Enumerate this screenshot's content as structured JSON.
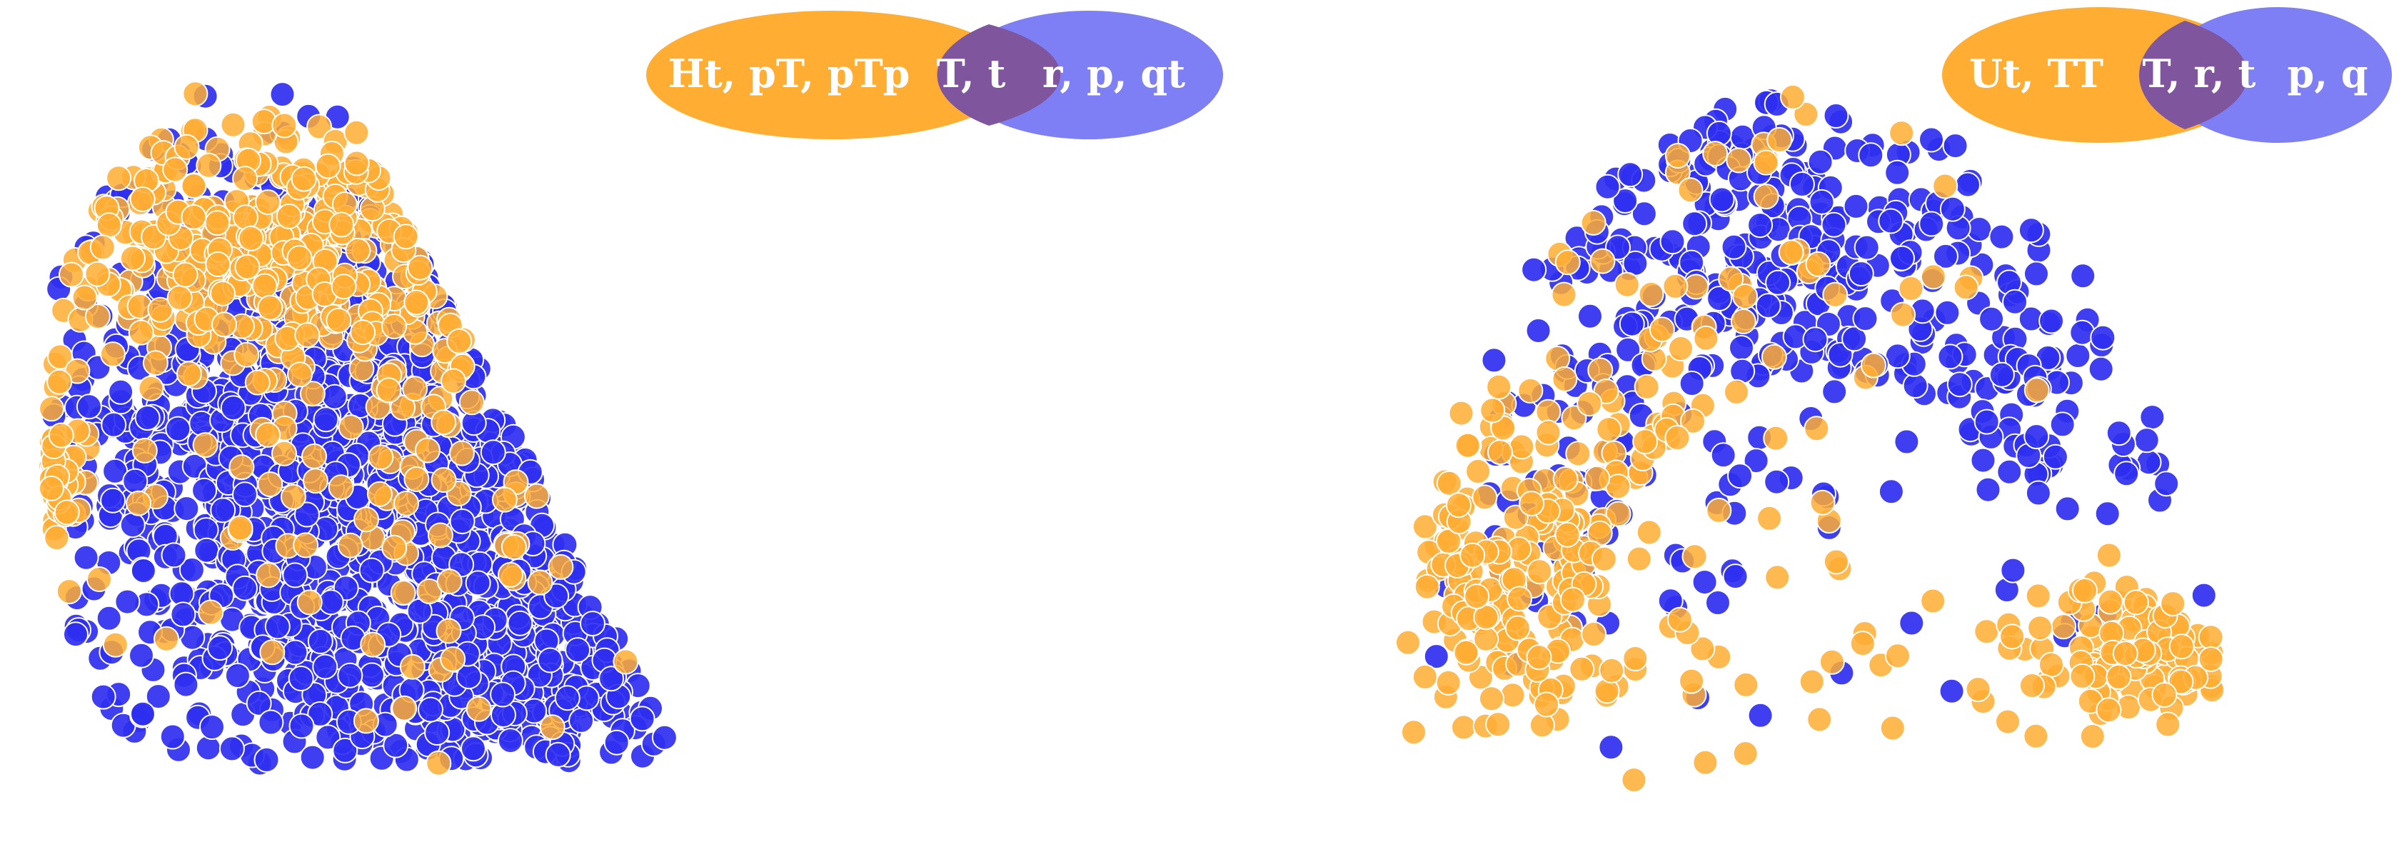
{
  "colors": {
    "blue": "#2f2ff0",
    "orange": "#ffad33",
    "point_edge": "#ffffff",
    "venn_left": "#ffad33",
    "venn_right": "#7f7ff5",
    "venn_overlap": "#7f559e"
  },
  "chart_data": [
    {
      "type": "scatter",
      "title": "",
      "xlabel": "",
      "ylabel": "",
      "axes_visible": false,
      "grid": false,
      "legend": {
        "placement": "top-right",
        "style": "venn",
        "left": "Ht, pT, pTp",
        "overlap": "T, t",
        "right": "r, p, qt"
      },
      "series": [
        {
          "color": "blue",
          "description": "dense blue cloud, leaf/wedge shape",
          "n": 1500,
          "regions": [
            [
              0.55,
              0.62,
              0.26,
              0.28,
              1.0
            ],
            [
              0.35,
              0.5,
              0.14,
              0.12,
              0.2
            ],
            [
              0.72,
              0.85,
              0.1,
              0.08,
              0.18
            ]
          ]
        },
        {
          "color": "orange",
          "description": "orange points concentrated along upper-left edge",
          "n": 520,
          "regions": [
            [
              0.38,
              0.26,
              0.22,
              0.09,
              0.8
            ],
            [
              0.05,
              0.57,
              0.02,
              0.05,
              0.1
            ],
            [
              0.55,
              0.55,
              0.22,
              0.2,
              0.25
            ]
          ]
        }
      ]
    },
    {
      "type": "scatter",
      "title": "",
      "xlabel": "",
      "ylabel": "",
      "axes_visible": false,
      "grid": false,
      "legend": {
        "placement": "top-right",
        "style": "venn",
        "left": "Ut, TT",
        "overlap": "T, r, t",
        "right": "p, q"
      },
      "series": [
        {
          "color": "blue",
          "description": "blue points along arch / dome shape",
          "n": 460,
          "regions": [
            [
              0.42,
              0.2,
              0.14,
              0.12,
              0.9
            ],
            [
              0.7,
              0.45,
              0.15,
              0.18,
              0.7
            ],
            [
              0.3,
              0.6,
              0.12,
              0.15,
              0.4
            ]
          ]
        },
        {
          "color": "orange",
          "description": "orange points concentrated lower-left and bottom-right",
          "n": 420,
          "regions": [
            [
              0.22,
              0.72,
              0.17,
              0.14,
              1.0
            ],
            [
              0.85,
              0.82,
              0.1,
              0.05,
              0.4
            ],
            [
              0.4,
              0.3,
              0.15,
              0.15,
              0.2
            ]
          ]
        }
      ]
    }
  ]
}
